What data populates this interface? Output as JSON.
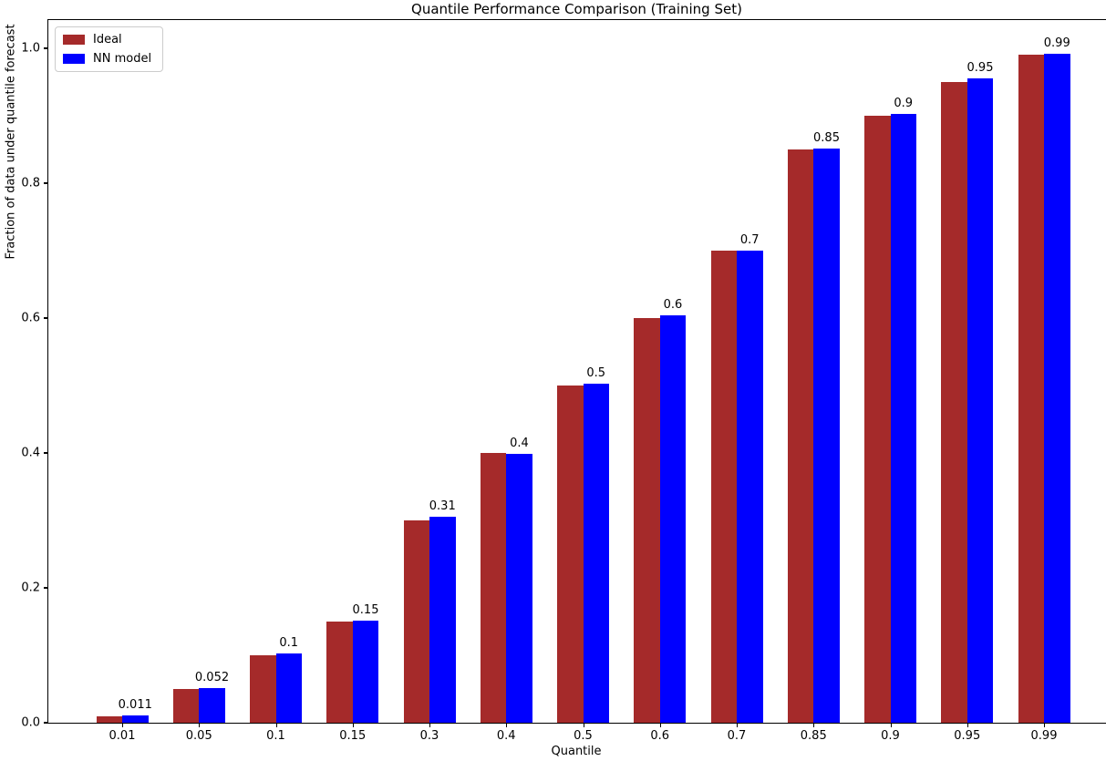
{
  "chart_data": {
    "type": "bar",
    "title": "Quantile Performance Comparison (Training Set)",
    "xlabel": "Quantile",
    "ylabel": "Fraction of data under quantile forecast",
    "categories": [
      "0.01",
      "0.05",
      "0.1",
      "0.15",
      "0.3",
      "0.4",
      "0.5",
      "0.6",
      "0.7",
      "0.85",
      "0.9",
      "0.95",
      "0.99"
    ],
    "series": [
      {
        "name": "Ideal",
        "color": "#A52A2A",
        "values": [
          0.01,
          0.05,
          0.1,
          0.15,
          0.3,
          0.4,
          0.5,
          0.6,
          0.7,
          0.85,
          0.9,
          0.95,
          0.99
        ]
      },
      {
        "name": "NN model",
        "color": "#0000FF",
        "values": [
          0.011,
          0.052,
          0.103,
          0.152,
          0.305,
          0.398,
          0.503,
          0.604,
          0.7,
          0.851,
          0.903,
          0.955,
          0.992
        ],
        "labels": [
          "0.011",
          "0.052",
          "0.1",
          "0.15",
          "0.31",
          "0.4",
          "0.5",
          "0.6",
          "0.7",
          "0.85",
          "0.9",
          "0.95",
          "0.99"
        ]
      }
    ],
    "yticks": [
      "0.0",
      "0.2",
      "0.4",
      "0.6",
      "0.8",
      "1.0"
    ],
    "ytick_values": [
      0.0,
      0.2,
      0.4,
      0.6,
      0.8,
      1.0
    ],
    "ylim": [
      0,
      1.042
    ],
    "grid": false,
    "legend_position": "upper left",
    "spine_color": "#000000",
    "background_color": "#ffffff"
  }
}
